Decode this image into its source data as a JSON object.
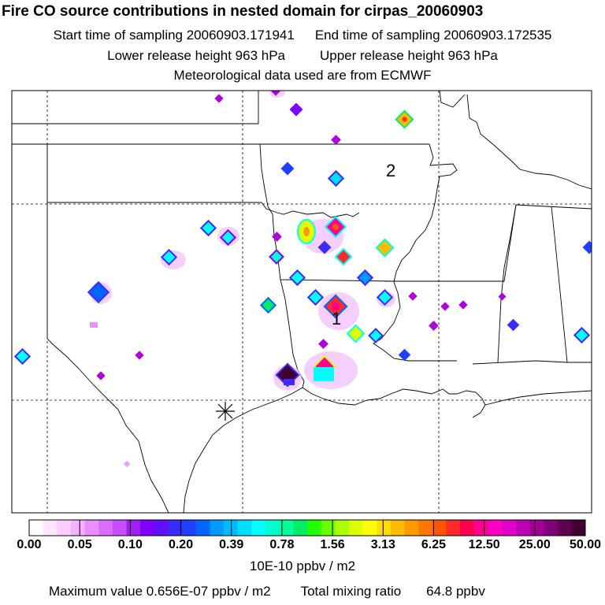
{
  "header": {
    "title": "Fire CO source contributions in nested domain for cirpas_20060903",
    "start_label": "Start time of sampling 20060903.171941",
    "end_label": "End time of sampling 20060903.172535",
    "lower_label": "Lower release height  963 hPa",
    "upper_label": "Upper release height  963 hPa",
    "met_label": "Meteorological data used are from ECMWF"
  },
  "map": {
    "markers": [
      "1",
      "2"
    ],
    "sampling_site_icon": "asterisk-icon"
  },
  "colorbar": {
    "colors": [
      "#ffffff",
      "#ffe6ff",
      "#ffccff",
      "#f5b0ff",
      "#e98fff",
      "#dc6bff",
      "#c84cff",
      "#a020f0",
      "#8000ff",
      "#6010ff",
      "#3c2bff",
      "#2040ff",
      "#0066ff",
      "#0099ff",
      "#00bbff",
      "#00ddff",
      "#00ffff",
      "#00ffcc",
      "#00ff99",
      "#00ee66",
      "#22ff00",
      "#66ff00",
      "#aaff00",
      "#ddff00",
      "#ffff00",
      "#ffdd00",
      "#ffbb00",
      "#ff9900",
      "#ff7700",
      "#ff5500",
      "#ff2a2a",
      "#ff0050",
      "#ff0090",
      "#ff00c0",
      "#e000c8",
      "#c000b8",
      "#a00098",
      "#800078",
      "#600050",
      "#400030"
    ],
    "tick_labels": [
      "0.00",
      "0.05",
      "0.10",
      "0.20",
      "0.39",
      "0.78",
      "1.56",
      "3.13",
      "6.25",
      "12.50",
      "25.00",
      "50.00"
    ],
    "unit": "10E-10 ppbv / m2"
  },
  "stats": {
    "max_label": "Maximum value  0.656E-07 ppbv / m2",
    "total_label": "Total mixing ratio",
    "total_value": "64.8 ppbv"
  }
}
